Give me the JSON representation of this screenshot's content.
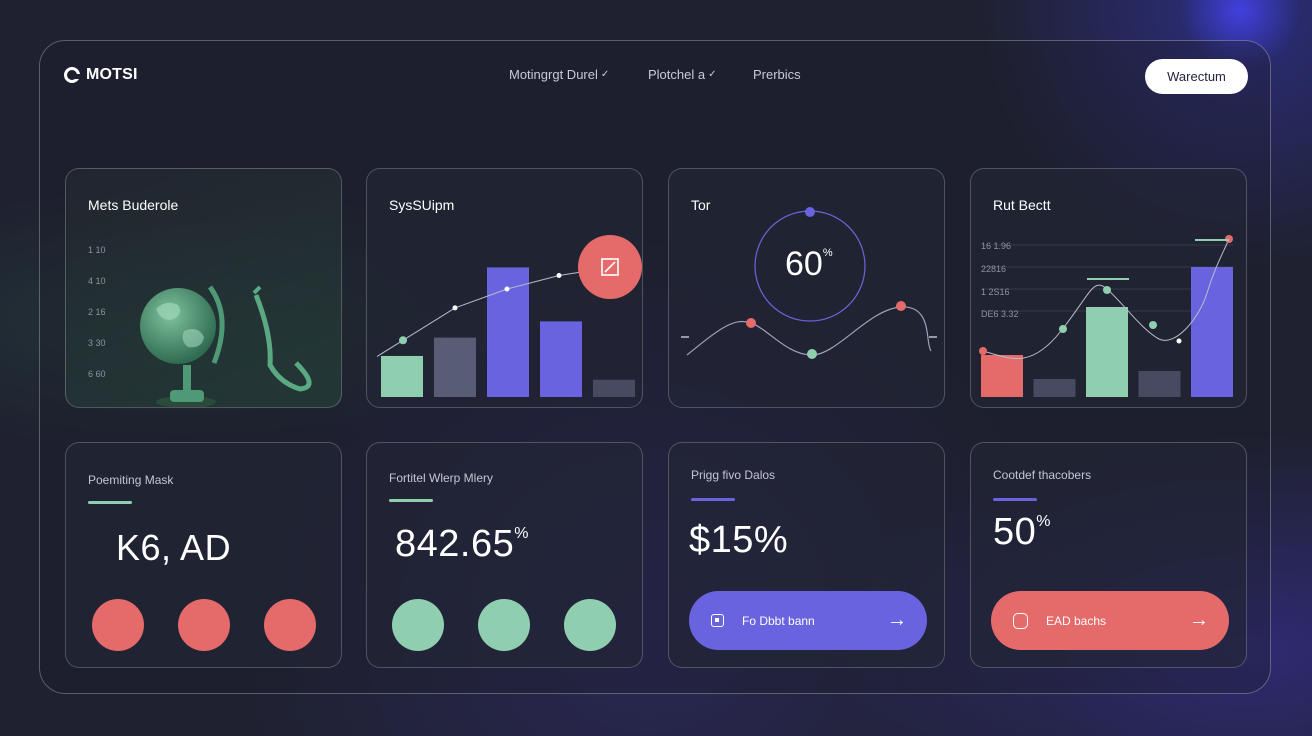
{
  "header": {
    "logo_text": "MOTSI",
    "nav": [
      {
        "label": "Motingrgt Durel"
      },
      {
        "label": "Plotchel a"
      },
      {
        "label": "Prerbics"
      }
    ],
    "cta_label": "Warectum"
  },
  "cards_top": [
    {
      "title": "Mets Buderole",
      "yticks": [
        "1 10",
        "4 10",
        "2 16",
        "3 30",
        "6 60"
      ],
      "illustration": "globe-icon"
    },
    {
      "title": "SysSUipm",
      "badge_icon": "edit-square-icon",
      "chart_data": {
        "type": "bar",
        "values": [
          38,
          55,
          120,
          70,
          16
        ],
        "line_values": [
          42,
          66,
          80,
          90,
          96
        ],
        "colors": [
          "#8fcfb0",
          "#585c74",
          "#6a63e0",
          "#6a63e0",
          "#474a61"
        ]
      }
    },
    {
      "title": "Tor",
      "gauge_value": "60",
      "gauge_unit": "%"
    },
    {
      "title": "Rut Bectt",
      "yticks": [
        "16 1.96",
        "22816",
        "1 2S16",
        "DE6 3.32"
      ],
      "chart_data": {
        "type": "bar",
        "values": [
          42,
          18,
          90,
          26,
          130
        ],
        "colors": [
          "#e56a6a",
          "#474a61",
          "#8fcfb0",
          "#474a61",
          "#6a63e0"
        ]
      }
    }
  ],
  "cards_bottom": [
    {
      "title": "Poemiting Mask",
      "value": "K6, AD",
      "accent": "#8fcfb0",
      "dot_color": "#e56a6a"
    },
    {
      "title": "Fortitel Wlerp Mlery",
      "value": "842.65",
      "unit": "%",
      "accent": "#8fcfb0",
      "dot_color": "#8fcfb0"
    },
    {
      "title": "Prigg fivo Dalos",
      "value": "$15%",
      "accent": "#6a63e0",
      "button_label": "Fo Dbbt bann",
      "button_color": "#6a63e0"
    },
    {
      "title": "Cootdef thacobers",
      "value": "50",
      "unit": "%",
      "accent": "#6a63e0",
      "button_label": "EAD bachs",
      "button_color": "#e56a6a"
    }
  ]
}
